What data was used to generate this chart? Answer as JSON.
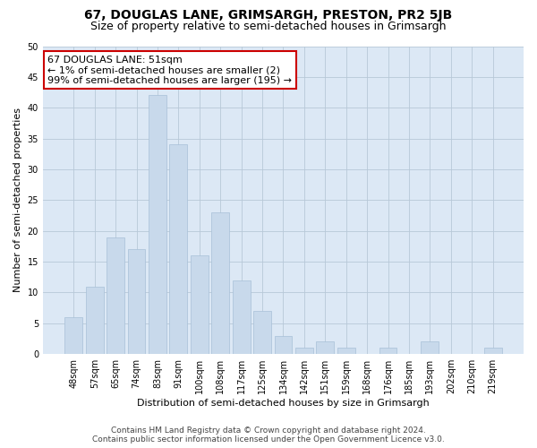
{
  "title": "67, DOUGLAS LANE, GRIMSARGH, PRESTON, PR2 5JB",
  "subtitle": "Size of property relative to semi-detached houses in Grimsargh",
  "xlabel": "Distribution of semi-detached houses by size in Grimsargh",
  "ylabel": "Number of semi-detached properties",
  "bar_labels": [
    "48sqm",
    "57sqm",
    "65sqm",
    "74sqm",
    "83sqm",
    "91sqm",
    "100sqm",
    "108sqm",
    "117sqm",
    "125sqm",
    "134sqm",
    "142sqm",
    "151sqm",
    "159sqm",
    "168sqm",
    "176sqm",
    "185sqm",
    "193sqm",
    "202sqm",
    "210sqm",
    "219sqm"
  ],
  "bar_values": [
    6,
    11,
    19,
    17,
    42,
    34,
    16,
    23,
    12,
    7,
    3,
    1,
    2,
    1,
    0,
    1,
    0,
    2,
    0,
    0,
    1
  ],
  "bar_color": "#c8d9eb",
  "bar_edge_color": "#a8c0d8",
  "annotation_title": "67 DOUGLAS LANE: 51sqm",
  "annotation_line1": "← 1% of semi-detached houses are smaller (2)",
  "annotation_line2": "99% of semi-detached houses are larger (195) →",
  "annotation_box_color": "#ffffff",
  "annotation_border_color": "#cc0000",
  "ylim": [
    0,
    50
  ],
  "yticks": [
    0,
    5,
    10,
    15,
    20,
    25,
    30,
    35,
    40,
    45,
    50
  ],
  "footer_line1": "Contains HM Land Registry data © Crown copyright and database right 2024.",
  "footer_line2": "Contains public sector information licensed under the Open Government Licence v3.0.",
  "bg_color": "#ffffff",
  "plot_bg_color": "#dce8f5",
  "grid_color": "#b8c8d8",
  "title_fontsize": 10,
  "subtitle_fontsize": 9,
  "axis_label_fontsize": 8,
  "tick_fontsize": 7,
  "annotation_fontsize": 8,
  "footer_fontsize": 6.5
}
